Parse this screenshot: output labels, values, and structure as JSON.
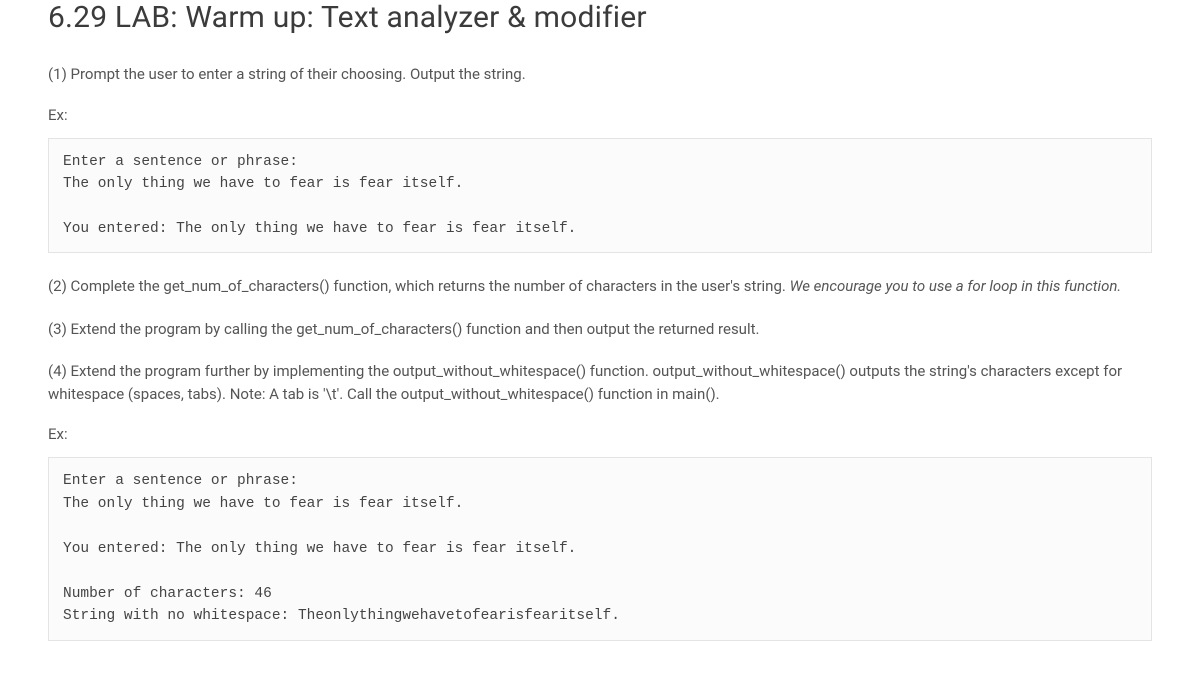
{
  "title": "6.29 LAB: Warm up: Text analyzer & modifier",
  "p1": "(1) Prompt the user to enter a string of their choosing. Output the string.",
  "ex1_label": "Ex:",
  "code1": "Enter a sentence or phrase:\nThe only thing we have to fear is fear itself.\n\nYou entered: The only thing we have to fear is fear itself.",
  "p2a": "(2) Complete the get_num_of_characters() function, which returns the number of characters in the user's string. ",
  "p2b": "We encourage you to use a for loop in this function.",
  "p3": "(3) Extend the program by calling the get_num_of_characters() function and then output the returned result.",
  "p4": "(4) Extend the program further by implementing the output_without_whitespace() function. output_without_whitespace() outputs the string's characters except for whitespace (spaces, tabs). Note: A tab is '\\t'. Call the output_without_whitespace() function in main().",
  "ex2_label": "Ex:",
  "code2": "Enter a sentence or phrase:\nThe only thing we have to fear is fear itself.\n\nYou entered: The only thing we have to fear is fear itself.\n\nNumber of characters: 46\nString with no whitespace: Theonlythingwehavetofearisfearitself.",
  "colors": {
    "background": "#ffffff",
    "text_primary": "#3b3b3b",
    "text_body": "#555555",
    "code_bg": "#fbfbfb",
    "code_border": "#e4e4e4",
    "code_text": "#444444"
  },
  "typography": {
    "title_fontsize": 30,
    "body_fontsize": 15,
    "code_fontsize": 14.5,
    "code_font": "Courier New"
  }
}
